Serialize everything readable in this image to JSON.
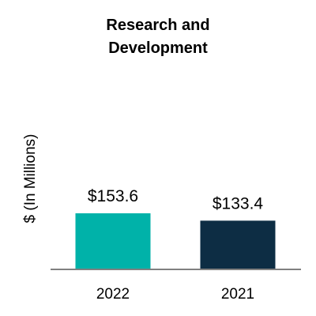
{
  "chart_data": {
    "type": "bar",
    "title_lines": [
      "Research and",
      "Development"
    ],
    "ylabel": "$ (In Millions)",
    "xlabel": "",
    "categories": [
      "2022",
      "2021"
    ],
    "values": [
      153.6,
      133.4
    ],
    "data_labels": [
      "$153.6",
      "$133.4"
    ],
    "bar_colors": [
      "#00b2a9",
      "#0d2d44"
    ],
    "axis_color": "#808080",
    "ylim": [
      0,
      160
    ],
    "grid": false,
    "legend": "none"
  }
}
